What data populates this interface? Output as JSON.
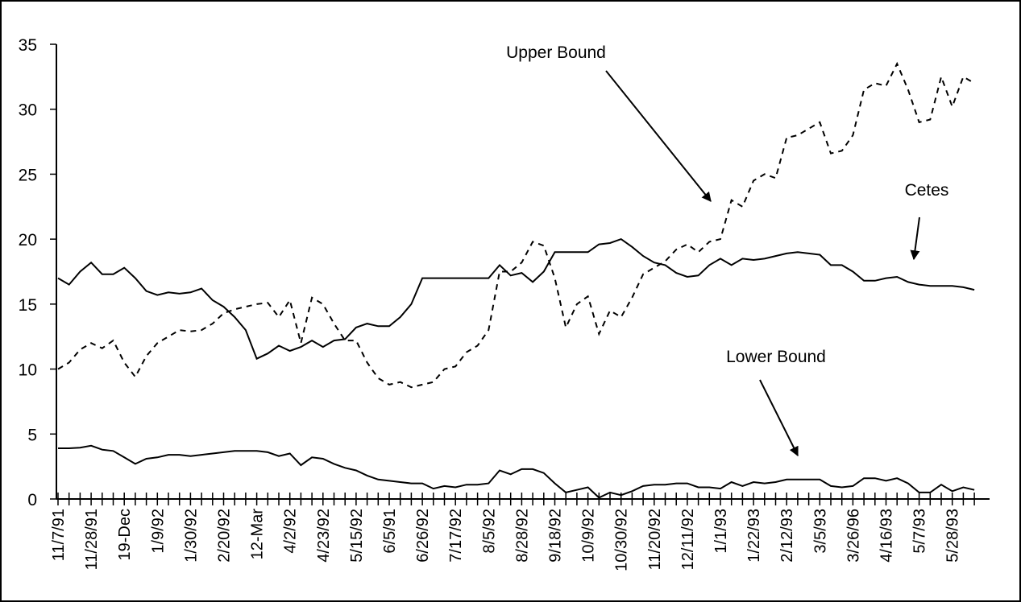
{
  "chart_data": {
    "type": "line",
    "categories": [
      "11/7/91",
      null,
      null,
      "11/28/91",
      null,
      null,
      "19-Dec",
      null,
      null,
      "1/9/92",
      null,
      null,
      "1/30/92",
      null,
      null,
      "2/20/92",
      null,
      null,
      "12-Mar",
      null,
      null,
      "4/2/92",
      null,
      null,
      "4/23/92",
      null,
      null,
      "5/15/92",
      null,
      null,
      "6/5/91",
      null,
      null,
      "6/26/92",
      null,
      null,
      "7/17/92",
      null,
      null,
      "8/5/92",
      null,
      null,
      "8/28/92",
      null,
      null,
      "9/18/92",
      null,
      null,
      "10/9/92",
      null,
      null,
      "10/30/92",
      null,
      null,
      "11/20/92",
      null,
      null,
      "12/11/92",
      null,
      null,
      "1/1/93",
      null,
      null,
      "1/22/93",
      null,
      null,
      "2/12/93",
      null,
      null,
      "3/5/93",
      null,
      null,
      "3/26/96",
      null,
      null,
      "4/16/93",
      null,
      null,
      "5/7/93",
      null,
      null,
      "5/28/93",
      null,
      null
    ],
    "series": [
      {
        "name": "Upper Bound",
        "color": "#000000",
        "line_style": "dashed",
        "values": [
          10,
          10.5,
          11.5,
          12,
          11.6,
          12.2,
          10.5,
          9.4,
          11,
          12,
          12.5,
          13,
          12.9,
          13,
          13.5,
          14.3,
          14.6,
          14.8,
          15,
          15.1,
          14,
          15.3,
          12,
          15.5,
          15,
          13.5,
          12.2,
          12.2,
          10.5,
          9.3,
          8.8,
          9,
          8.6,
          8.8,
          9,
          10,
          10.2,
          11.3,
          11.8,
          13,
          17.5,
          17.5,
          18.2,
          19.8,
          19.5,
          17,
          13.2,
          15,
          15.6,
          12.7,
          14.5,
          14,
          15.5,
          17.3,
          17.8,
          18.3,
          19.2,
          19.6,
          19,
          19.8,
          20,
          23,
          22.5,
          24.5,
          25,
          24.7,
          27.8,
          28,
          28.5,
          29,
          26.6,
          26.8,
          28,
          31.5,
          32,
          31.8,
          33.5,
          31.5,
          29,
          29.2,
          32.5,
          30.2,
          32.5,
          32
        ]
      },
      {
        "name": "Cetes",
        "color": "#000000",
        "line_style": "solid",
        "values": [
          17,
          16.5,
          17.5,
          18.2,
          17.3,
          17.3,
          17.8,
          17,
          16,
          15.7,
          15.9,
          15.8,
          15.9,
          16.2,
          15.3,
          14.8,
          14,
          13,
          10.8,
          11.2,
          11.8,
          11.4,
          11.7,
          12.2,
          11.7,
          12.2,
          12.3,
          13.2,
          13.5,
          13.3,
          13.3,
          14,
          15,
          17,
          17,
          17,
          17,
          17,
          17,
          17,
          18,
          17.2,
          17.4,
          16.7,
          17.5,
          19,
          19,
          19,
          19,
          19.6,
          19.7,
          20,
          19.4,
          18.7,
          18.2,
          18,
          17.4,
          17.1,
          17.2,
          18,
          18.5,
          18,
          18.5,
          18.4,
          18.5,
          18.7,
          18.9,
          19,
          18.9,
          18.8,
          18,
          18,
          17.5,
          16.8,
          16.8,
          17,
          17.1,
          16.7,
          16.5,
          16.4,
          16.4,
          16.4,
          16.3,
          16.1
        ]
      },
      {
        "name": "Lower Bound",
        "color": "#000000",
        "line_style": "solid",
        "values": [
          3.9,
          3.9,
          3.95,
          4.1,
          3.8,
          3.7,
          3.2,
          2.7,
          3.1,
          3.2,
          3.4,
          3.4,
          3.3,
          3.4,
          3.5,
          3.6,
          3.7,
          3.7,
          3.7,
          3.6,
          3.3,
          3.5,
          2.6,
          3.2,
          3.1,
          2.7,
          2.4,
          2.2,
          1.8,
          1.5,
          1.4,
          1.3,
          1.2,
          1.2,
          0.8,
          1,
          0.9,
          1.1,
          1.1,
          1.2,
          2.2,
          1.9,
          2.3,
          2.3,
          2,
          1.2,
          0.5,
          0.7,
          0.9,
          0.1,
          0.5,
          0.3,
          0.6,
          1,
          1.1,
          1.1,
          1.2,
          1.2,
          0.9,
          0.9,
          0.8,
          1.3,
          1,
          1.3,
          1.2,
          1.3,
          1.5,
          1.5,
          1.5,
          1.5,
          1,
          0.9,
          1,
          1.6,
          1.6,
          1.4,
          1.6,
          1.2,
          0.5,
          0.5,
          1.1,
          0.6,
          0.9,
          0.7
        ]
      }
    ],
    "ylim": [
      0,
      35
    ],
    "yticks": [
      0,
      5,
      10,
      15,
      20,
      25,
      30,
      35
    ],
    "grid": false
  }
}
